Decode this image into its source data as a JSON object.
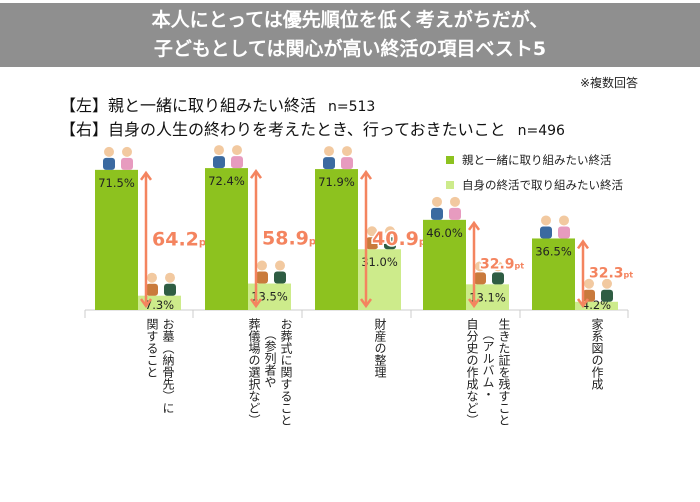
{
  "header": {
    "title_line1": "本人にとっては優先順位を低く考えがちだが、",
    "title_line2": "子どもとしては関心が高い終活の項目ベスト5"
  },
  "note": "※複数回答",
  "subtitles": [
    {
      "label": "【左】親と一緒に取り組みたい終活",
      "n": "n=513"
    },
    {
      "label": "【右】自身の人生の終わりを考えたとき、行っておきたいこと",
      "n": "n=496"
    }
  ],
  "chart_data": {
    "type": "bar",
    "categories": [
      [
        "お墓（納骨先）に",
        "関すること"
      ],
      [
        "お葬式に関すること",
        "（参列者や",
        "葬儀場の選択など）"
      ],
      [
        "財産の整理"
      ],
      [
        "生きた証を残すこと",
        "（アルバム・",
        "自分史の作成など）"
      ],
      [
        "家系図の作成"
      ]
    ],
    "series": [
      {
        "name": "親と一緒に取り組みたい終活",
        "values": [
          71.5,
          72.4,
          71.9,
          46.0,
          36.5
        ],
        "labels": [
          "71.5%",
          "72.4%",
          "71.9%",
          "46.0%",
          "36.5%"
        ],
        "color": "#8dc21f"
      },
      {
        "name": "自身の終活で取り組みたい終活",
        "values": [
          7.3,
          13.5,
          31.0,
          13.1,
          4.2
        ],
        "labels": [
          "7.3%",
          "13.5%",
          "31.0%",
          "13.1%",
          "4.2%"
        ],
        "color": "#cdeb8b"
      }
    ],
    "differences": [
      {
        "value": "64.2",
        "unit": "pt"
      },
      {
        "value": "58.9",
        "unit": "pt"
      },
      {
        "value": "40.9",
        "unit": "pt"
      },
      {
        "value": "32.9",
        "unit": "pt"
      },
      {
        "value": "32.3",
        "unit": "pt"
      }
    ],
    "arrow_color": "#f4845f",
    "ylim": [
      0,
      100
    ],
    "legend": "top-right"
  }
}
